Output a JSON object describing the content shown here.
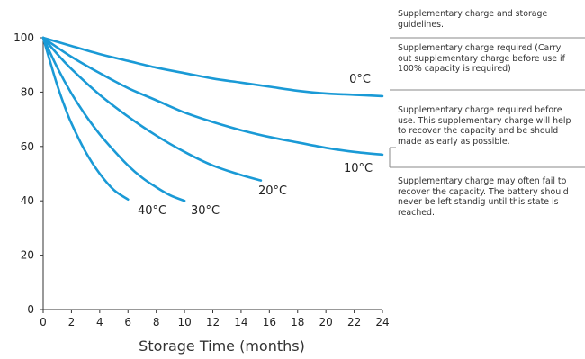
{
  "chart_data": {
    "type": "line",
    "title": "",
    "xlabel": "Storage Time (months)",
    "ylabel": "",
    "xlim": [
      0,
      24
    ],
    "ylim": [
      0,
      100
    ],
    "x_ticks": [
      0,
      2,
      4,
      6,
      8,
      10,
      12,
      14,
      16,
      18,
      20,
      22,
      24
    ],
    "y_ticks": [
      0,
      20,
      40,
      60,
      80,
      100
    ],
    "grid": false,
    "line_color": "#1a9ad6",
    "series": [
      {
        "name": "0°C",
        "x": [
          0,
          2,
          4,
          6,
          8,
          10,
          12,
          14,
          16,
          18,
          20,
          22,
          24
        ],
        "y": [
          100,
          97,
          94,
          91.5,
          89,
          87,
          85,
          83.5,
          82,
          80.5,
          79.5,
          79,
          78.5
        ]
      },
      {
        "name": "10°C",
        "x": [
          0,
          2,
          4,
          6,
          8,
          10,
          12,
          14,
          16,
          18,
          20,
          22,
          24
        ],
        "y": [
          100,
          93,
          87,
          81.5,
          77,
          72.5,
          69,
          66,
          63.5,
          61.5,
          59.5,
          58,
          57
        ]
      },
      {
        "name": "20°C",
        "x": [
          0,
          1,
          2,
          4,
          6,
          8,
          10,
          12,
          14,
          15.4
        ],
        "y": [
          100,
          94,
          88.5,
          79,
          71,
          64,
          58,
          53,
          49.5,
          47.5
        ]
      },
      {
        "name": "30°C",
        "x": [
          0,
          1,
          2,
          3,
          4,
          5,
          6,
          7,
          8,
          9,
          10
        ],
        "y": [
          100,
          89,
          79.5,
          71.5,
          64.5,
          58.5,
          53,
          48.5,
          45,
          42,
          40
        ]
      },
      {
        "name": "40°C",
        "x": [
          0,
          0.5,
          1,
          1.5,
          2,
          3,
          4,
          5,
          6
        ],
        "y": [
          100,
          91,
          82.5,
          75,
          68.5,
          58,
          50,
          44,
          40.5
        ]
      }
    ],
    "annotations": [
      "Supplementary charge and storage guidelines.",
      "Supplementary charge required (Carry out supplementary charge before use if 100% capacity is required)",
      "Supplementary charge required before use. This supplementary charge will help to recover the capacity and be should made as early as possible.",
      "Supplementary charge may often fail to recover the capacity. The battery should never be left standig until this state is reached."
    ]
  }
}
